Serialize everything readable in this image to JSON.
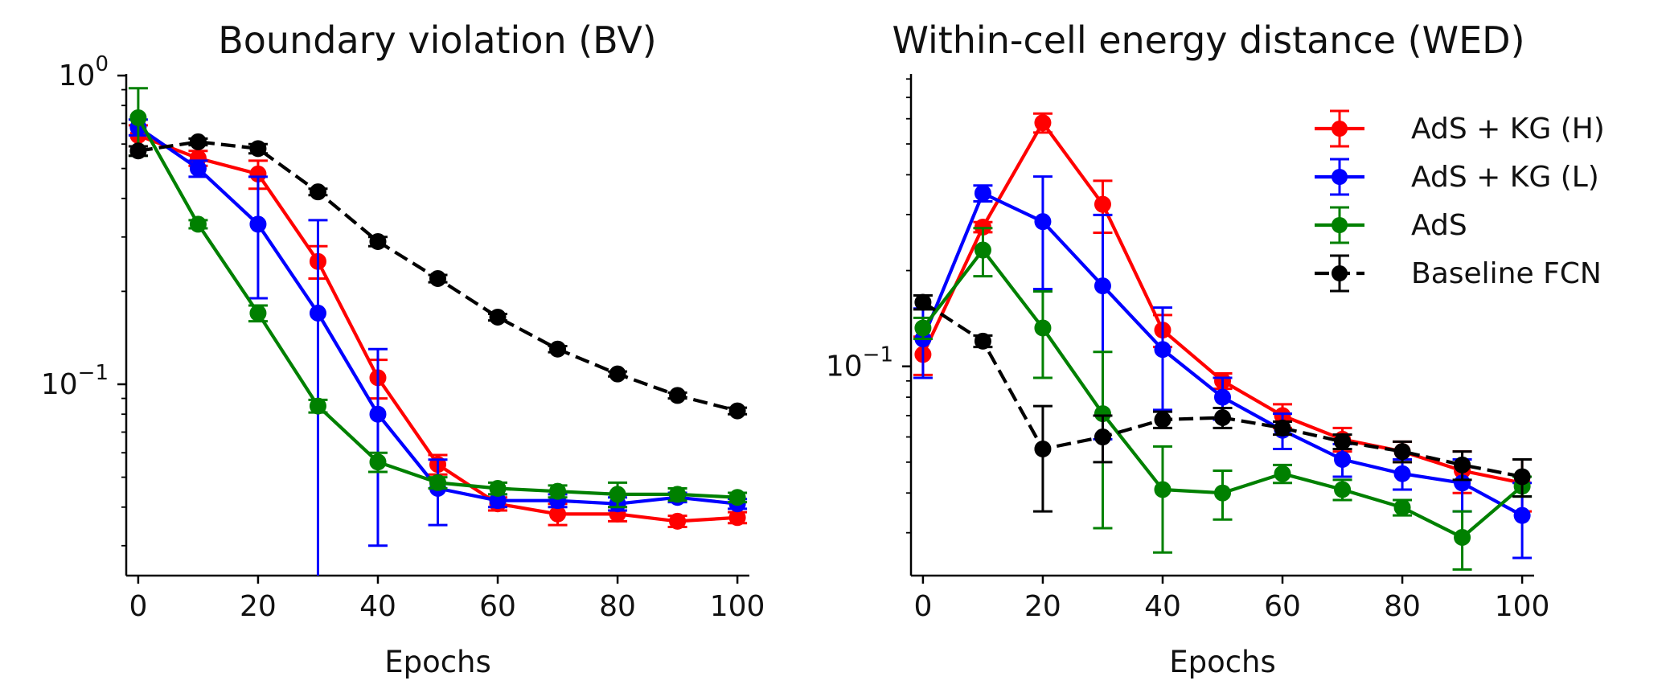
{
  "chart_data": [
    {
      "type": "line",
      "title": "Boundary violation (BV)",
      "xlabel": "Epochs",
      "ylabel": "",
      "yscale": "log",
      "xlim": [
        -2,
        102
      ],
      "ylim": [
        0.024,
        1.0
      ],
      "xticks": [
        0,
        20,
        40,
        60,
        80,
        100
      ],
      "xtick_labels": [
        "0",
        "20",
        "40",
        "60",
        "80",
        "100"
      ],
      "yticks": [
        0.1,
        1.0
      ],
      "ytick_bases": [
        "10",
        "10"
      ],
      "ytick_exps": [
        "−1",
        "0"
      ],
      "grid": false,
      "legend": "none",
      "x": [
        0,
        10,
        20,
        30,
        40,
        50,
        60,
        70,
        80,
        90,
        100
      ],
      "series": [
        {
          "name": "AdS + KG (H)",
          "color": "#ff0000",
          "dash": "solid",
          "values": [
            0.64,
            0.54,
            0.48,
            0.25,
            0.105,
            0.055,
            0.041,
            0.038,
            0.038,
            0.036,
            0.037
          ],
          "errors": [
            0.05,
            0.03,
            0.05,
            0.03,
            0.015,
            0.004,
            0.002,
            0.003,
            0.002,
            0.0015,
            0.0015
          ]
        },
        {
          "name": "AdS + KG (L)",
          "color": "#0000ff",
          "dash": "solid",
          "values": [
            0.68,
            0.5,
            0.33,
            0.17,
            0.08,
            0.046,
            0.042,
            0.042,
            0.041,
            0.043,
            0.041
          ],
          "errors": [
            0.04,
            0.03,
            0.14,
            0.17,
            0.05,
            0.011,
            0.002,
            0.002,
            0.002,
            0.0015,
            0.0015
          ]
        },
        {
          "name": "AdS",
          "color": "#008000",
          "dash": "solid",
          "values": [
            0.73,
            0.33,
            0.17,
            0.085,
            0.056,
            0.048,
            0.046,
            0.045,
            0.044,
            0.044,
            0.043
          ],
          "errors": [
            0.18,
            0.01,
            0.01,
            0.004,
            0.004,
            0.002,
            0.002,
            0.002,
            0.004,
            0.002,
            0.0015
          ]
        },
        {
          "name": "Baseline FCN",
          "color": "#000000",
          "dash": "dashed",
          "values": [
            0.57,
            0.61,
            0.58,
            0.42,
            0.29,
            0.22,
            0.165,
            0.13,
            0.108,
            0.092,
            0.082
          ],
          "errors": [
            0.02,
            0.015,
            0.02,
            0.01,
            0.01,
            0.006,
            0.004,
            0.003,
            0.002,
            0.002,
            0.002
          ]
        }
      ]
    },
    {
      "type": "line",
      "title": "Within-cell energy distance (WED)",
      "xlabel": "Epochs",
      "ylabel": "",
      "yscale": "log",
      "xlim": [
        -2,
        102
      ],
      "ylim": [
        0.022,
        0.82
      ],
      "xticks": [
        0,
        20,
        40,
        60,
        80,
        100
      ],
      "xtick_labels": [
        "0",
        "20",
        "40",
        "60",
        "80",
        "100"
      ],
      "yticks": [
        0.1
      ],
      "ytick_bases": [
        "10"
      ],
      "ytick_exps": [
        "−1"
      ],
      "grid": false,
      "legend": "top-right",
      "x": [
        0,
        10,
        20,
        30,
        40,
        50,
        60,
        70,
        80,
        90,
        100
      ],
      "series": [
        {
          "name": "AdS + KG (H)",
          "color": "#ff0000",
          "dash": "solid",
          "values": [
            0.109,
            0.274,
            0.583,
            0.323,
            0.13,
            0.09,
            0.07,
            0.059,
            0.054,
            0.047,
            0.043
          ],
          "errors": [
            0.015,
            0.01,
            0.04,
            0.06,
            0.015,
            0.005,
            0.006,
            0.005,
            0.004,
            0.007,
            0.008
          ]
        },
        {
          "name": "AdS + KG (L)",
          "color": "#0000ff",
          "dash": "solid",
          "values": [
            0.122,
            0.35,
            0.285,
            0.179,
            0.113,
            0.08,
            0.063,
            0.051,
            0.046,
            0.043,
            0.034
          ],
          "errors": [
            0.03,
            0.02,
            0.11,
            0.12,
            0.04,
            0.012,
            0.008,
            0.006,
            0.005,
            0.008,
            0.009
          ]
        },
        {
          "name": "AdS",
          "color": "#008000",
          "dash": "solid",
          "values": [
            0.132,
            0.232,
            0.132,
            0.071,
            0.041,
            0.04,
            0.046,
            0.041,
            0.036,
            0.029,
            0.042
          ],
          "errors": [
            0.01,
            0.04,
            0.04,
            0.04,
            0.015,
            0.007,
            0.003,
            0.003,
            0.002,
            0.006,
            0.003
          ]
        },
        {
          "name": "Baseline FCN",
          "color": "#000000",
          "dash": "dashed",
          "values": [
            0.159,
            0.12,
            0.055,
            0.06,
            0.068,
            0.069,
            0.064,
            0.058,
            0.054,
            0.049,
            0.045
          ],
          "errors": [
            0.008,
            0.005,
            0.02,
            0.01,
            0.004,
            0.005,
            0.003,
            0.003,
            0.004,
            0.005,
            0.006
          ]
        }
      ]
    }
  ]
}
